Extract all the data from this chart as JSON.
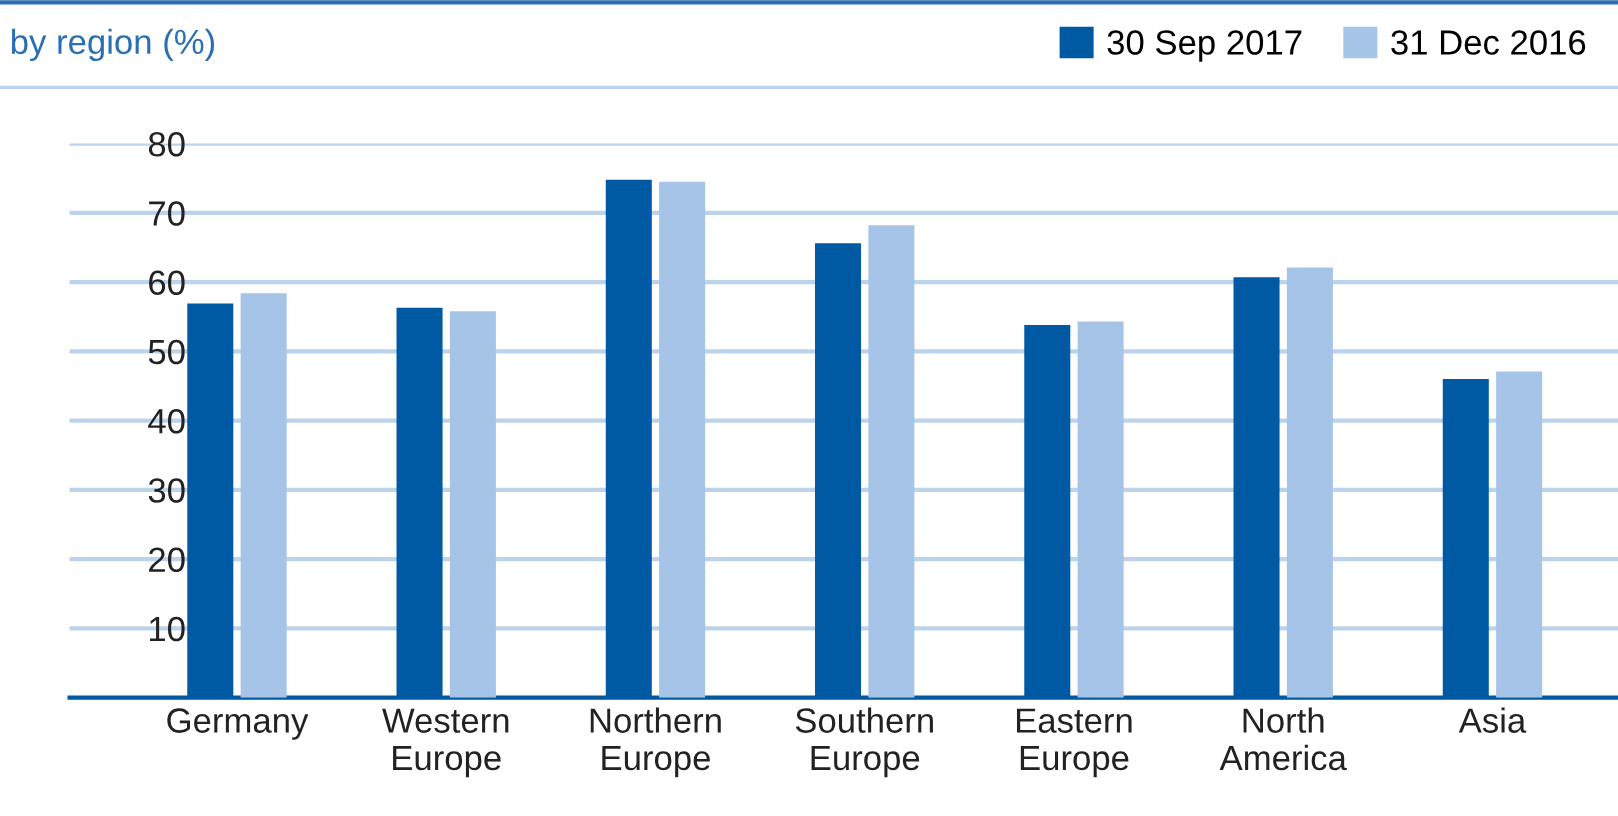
{
  "chart_data": {
    "type": "bar",
    "title": "by region (%)",
    "categories": [
      "Germany",
      "Western\nEurope",
      "Northern\nEurope",
      "Southern\nEurope",
      "Eastern\nEurope",
      "North\nAmerica",
      "Asia"
    ],
    "series": [
      {
        "name": "30 Sep 2017",
        "color": "#0059a3",
        "values": [
          56.9,
          56.3,
          74.8,
          65.6,
          53.8,
          60.7,
          46.0
        ]
      },
      {
        "name": "31 Dec 2016",
        "color": "#a5c4e8",
        "values": [
          58.4,
          55.8,
          74.5,
          68.2,
          54.3,
          62.1,
          47.1
        ]
      }
    ],
    "ylim": [
      0,
      80
    ],
    "yticks": [
      10,
      20,
      30,
      40,
      50,
      60,
      70,
      80
    ],
    "grid": "y",
    "legend": "top right"
  }
}
